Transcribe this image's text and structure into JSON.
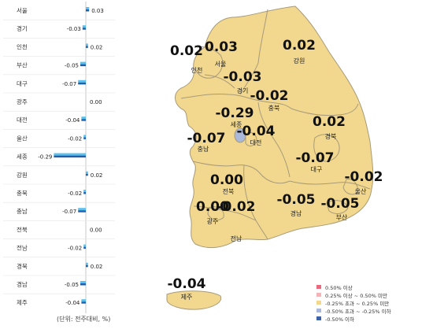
{
  "colors": {
    "bar_light": "#5bc0eb",
    "bar_dark": "#1f5fae",
    "map_fill": "#f2d88e",
    "map_border": "#a89a78",
    "map_blue": "#aab8dc"
  },
  "legend": [
    {
      "label": "0.50% 이상",
      "color": "#e86a7e"
    },
    {
      "label": "0.25% 이상 ~ 0.50% 미만",
      "color": "#f4b3b6"
    },
    {
      "label": "-0.25% 초과 ~ 0.25% 미만",
      "color": "#f2d88e"
    },
    {
      "label": "-0.50% 초과 ~ -0.25% 이하",
      "color": "#aab8dc"
    },
    {
      "label": "-0.50% 이하",
      "color": "#3e62a8"
    }
  ],
  "unit_note": "(단위: 전주대비, %)",
  "chart_data": [
    {
      "type": "bar",
      "orientation": "horizontal",
      "categories": [
        "서울",
        "경기",
        "인천",
        "부산",
        "대구",
        "광주",
        "대전",
        "울산",
        "세종",
        "강원",
        "충북",
        "충남",
        "전북",
        "전남",
        "경북",
        "경남",
        "제주"
      ],
      "values": [
        0.03,
        -0.03,
        0.02,
        -0.05,
        -0.07,
        0.0,
        -0.04,
        -0.02,
        -0.29,
        0.02,
        -0.02,
        -0.07,
        0.0,
        -0.02,
        0.02,
        -0.05,
        -0.04
      ],
      "value_labels": [
        "0.03",
        "-0.03",
        "0.02",
        "-0.05",
        "-0.07",
        "0.00",
        "-0.04",
        "-0.02",
        "-0.29",
        "0.02",
        "-0.02",
        "-0.07",
        "0.00",
        "-0.02",
        "0.02",
        "-0.05",
        "-0.04"
      ],
      "xlim": [
        -0.35,
        0.05
      ]
    },
    {
      "type": "map",
      "regions": [
        {
          "name": "인천",
          "value": "0.02"
        },
        {
          "name": "서울",
          "value": "0.03"
        },
        {
          "name": "강원",
          "value": "0.02"
        },
        {
          "name": "경기",
          "value": "-0.03"
        },
        {
          "name": "충북",
          "value": "-0.02"
        },
        {
          "name": "세종",
          "value": "-0.29"
        },
        {
          "name": "대전",
          "value": "-0.04"
        },
        {
          "name": "충남",
          "value": "-0.07"
        },
        {
          "name": "경북",
          "value": "0.02"
        },
        {
          "name": "대구",
          "value": "-0.07"
        },
        {
          "name": "울산",
          "value": "-0.02"
        },
        {
          "name": "전북",
          "value": "0.00"
        },
        {
          "name": "광주",
          "value": "0.00"
        },
        {
          "name": "전남",
          "value": "-0.02"
        },
        {
          "name": "경남",
          "value": "-0.05"
        },
        {
          "name": "부산",
          "value": "-0.05"
        },
        {
          "name": "제주",
          "value": "-0.04"
        }
      ]
    }
  ]
}
